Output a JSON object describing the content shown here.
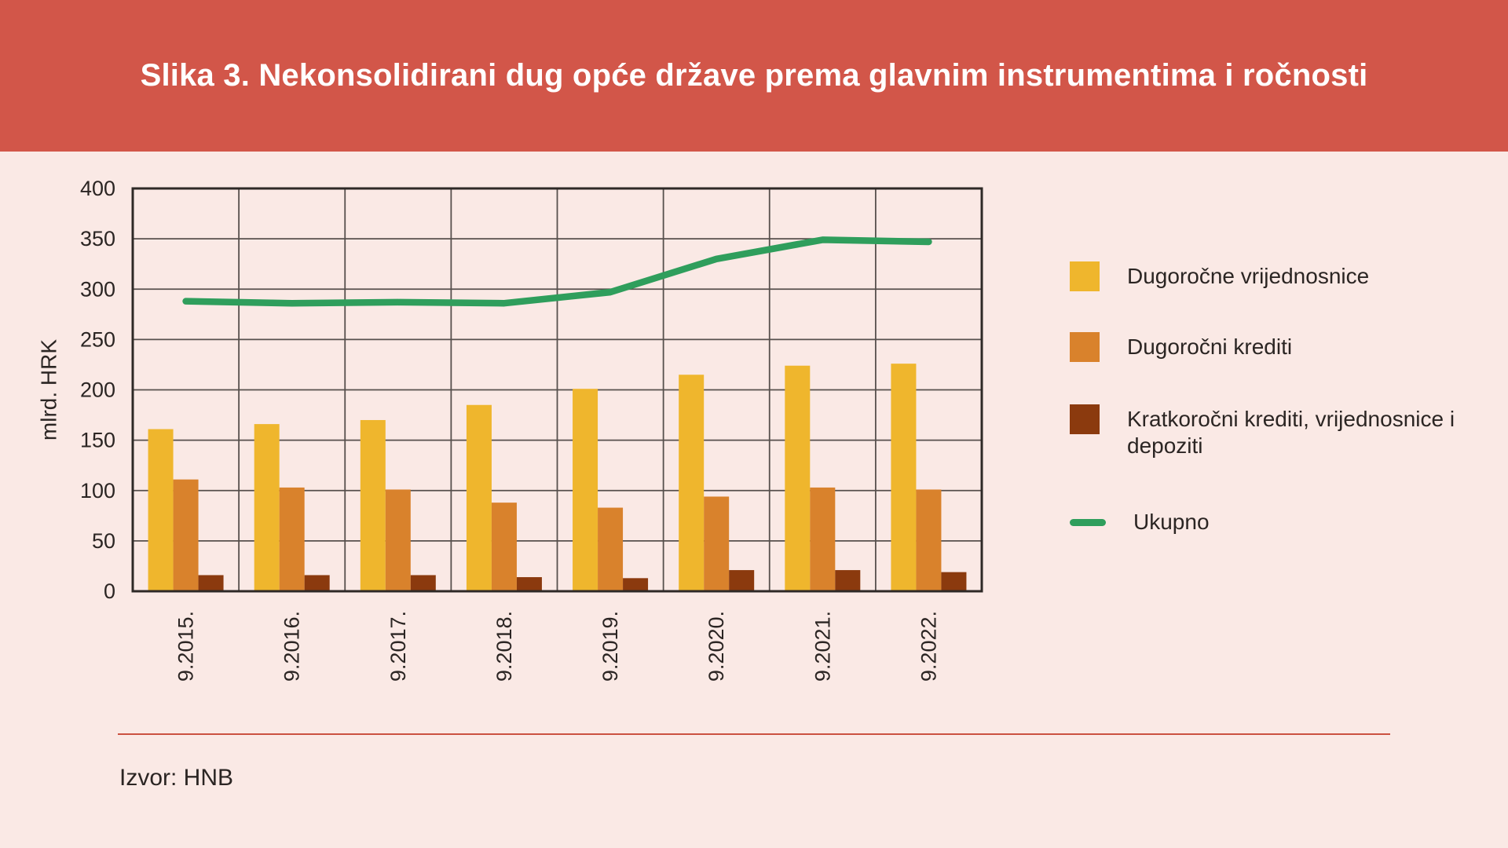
{
  "header": {
    "title": "Slika 3. Nekonsolidirani dug opće države prema glavnim instrumentima i ročnosti",
    "background_color": "#D25649"
  },
  "legend": {
    "items": [
      {
        "label": "Dugoročne vrijednosnice",
        "swatch": "square",
        "color": "#EFB62D"
      },
      {
        "label": "Dugoročni krediti",
        "swatch": "square",
        "color": "#D9822C"
      },
      {
        "label": "Kratkoročni krediti, vrijednosnice i depoziti",
        "swatch": "square",
        "color": "#8B3A0E"
      },
      {
        "label": "Ukupno",
        "swatch": "line",
        "color": "#2F9E5C"
      }
    ]
  },
  "footer": {
    "source": "Izvor: HNB"
  },
  "chart_data": {
    "type": "bar",
    "note": "grouped bars with overlaid total line",
    "categories": [
      "9.2015.",
      "9.2016.",
      "9.2017.",
      "9.2018.",
      "9.2019.",
      "9.2020.",
      "9.2021.",
      "9.2022."
    ],
    "series": [
      {
        "name": "Dugoročne vrijednosnice",
        "kind": "bar",
        "color": "#EFB62D",
        "values": [
          161,
          166,
          170,
          185,
          201,
          215,
          224,
          226
        ]
      },
      {
        "name": "Dugoročni krediti",
        "kind": "bar",
        "color": "#D9822C",
        "values": [
          111,
          103,
          101,
          88,
          83,
          94,
          103,
          101
        ]
      },
      {
        "name": "Kratkoročni krediti, vrijednosnice i depoziti",
        "kind": "bar",
        "color": "#8B3A0E",
        "values": [
          16,
          16,
          16,
          14,
          13,
          21,
          21,
          19
        ]
      },
      {
        "name": "Ukupno",
        "kind": "line",
        "color": "#2F9E5C",
        "values": [
          288,
          286,
          287,
          286,
          297,
          330,
          349,
          347
        ]
      }
    ],
    "title": "",
    "xlabel": "",
    "ylabel": "mlrd. HRK",
    "ylim": [
      0,
      400
    ],
    "ytick_step": 50,
    "yticks": [
      0,
      50,
      100,
      150,
      200,
      250,
      300,
      350,
      400
    ],
    "grid": true,
    "legend_position": "right",
    "axis_text_color": "#2B2523",
    "grid_color": "#57504D",
    "frame_color": "#2E2926",
    "background_color": "#FAE9E5"
  }
}
